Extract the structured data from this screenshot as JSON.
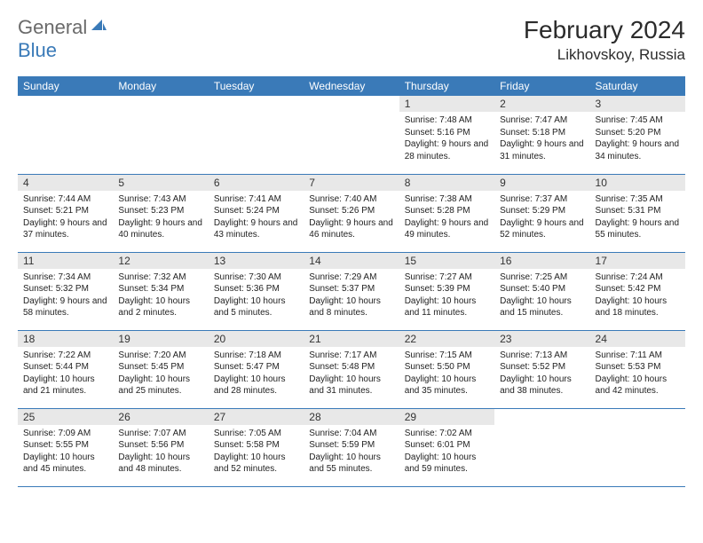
{
  "brand": {
    "general": "General",
    "blue": "Blue"
  },
  "title": "February 2024",
  "location": "Likhovskoy, Russia",
  "header_bg": "#3a7ab8",
  "daynames": [
    "Sunday",
    "Monday",
    "Tuesday",
    "Wednesday",
    "Thursday",
    "Friday",
    "Saturday"
  ],
  "weeks": [
    [
      null,
      null,
      null,
      null,
      {
        "n": "1",
        "sr": "7:48 AM",
        "ss": "5:16 PM",
        "dl": "9 hours and 28 minutes."
      },
      {
        "n": "2",
        "sr": "7:47 AM",
        "ss": "5:18 PM",
        "dl": "9 hours and 31 minutes."
      },
      {
        "n": "3",
        "sr": "7:45 AM",
        "ss": "5:20 PM",
        "dl": "9 hours and 34 minutes."
      }
    ],
    [
      {
        "n": "4",
        "sr": "7:44 AM",
        "ss": "5:21 PM",
        "dl": "9 hours and 37 minutes."
      },
      {
        "n": "5",
        "sr": "7:43 AM",
        "ss": "5:23 PM",
        "dl": "9 hours and 40 minutes."
      },
      {
        "n": "6",
        "sr": "7:41 AM",
        "ss": "5:24 PM",
        "dl": "9 hours and 43 minutes."
      },
      {
        "n": "7",
        "sr": "7:40 AM",
        "ss": "5:26 PM",
        "dl": "9 hours and 46 minutes."
      },
      {
        "n": "8",
        "sr": "7:38 AM",
        "ss": "5:28 PM",
        "dl": "9 hours and 49 minutes."
      },
      {
        "n": "9",
        "sr": "7:37 AM",
        "ss": "5:29 PM",
        "dl": "9 hours and 52 minutes."
      },
      {
        "n": "10",
        "sr": "7:35 AM",
        "ss": "5:31 PM",
        "dl": "9 hours and 55 minutes."
      }
    ],
    [
      {
        "n": "11",
        "sr": "7:34 AM",
        "ss": "5:32 PM",
        "dl": "9 hours and 58 minutes."
      },
      {
        "n": "12",
        "sr": "7:32 AM",
        "ss": "5:34 PM",
        "dl": "10 hours and 2 minutes."
      },
      {
        "n": "13",
        "sr": "7:30 AM",
        "ss": "5:36 PM",
        "dl": "10 hours and 5 minutes."
      },
      {
        "n": "14",
        "sr": "7:29 AM",
        "ss": "5:37 PM",
        "dl": "10 hours and 8 minutes."
      },
      {
        "n": "15",
        "sr": "7:27 AM",
        "ss": "5:39 PM",
        "dl": "10 hours and 11 minutes."
      },
      {
        "n": "16",
        "sr": "7:25 AM",
        "ss": "5:40 PM",
        "dl": "10 hours and 15 minutes."
      },
      {
        "n": "17",
        "sr": "7:24 AM",
        "ss": "5:42 PM",
        "dl": "10 hours and 18 minutes."
      }
    ],
    [
      {
        "n": "18",
        "sr": "7:22 AM",
        "ss": "5:44 PM",
        "dl": "10 hours and 21 minutes."
      },
      {
        "n": "19",
        "sr": "7:20 AM",
        "ss": "5:45 PM",
        "dl": "10 hours and 25 minutes."
      },
      {
        "n": "20",
        "sr": "7:18 AM",
        "ss": "5:47 PM",
        "dl": "10 hours and 28 minutes."
      },
      {
        "n": "21",
        "sr": "7:17 AM",
        "ss": "5:48 PM",
        "dl": "10 hours and 31 minutes."
      },
      {
        "n": "22",
        "sr": "7:15 AM",
        "ss": "5:50 PM",
        "dl": "10 hours and 35 minutes."
      },
      {
        "n": "23",
        "sr": "7:13 AM",
        "ss": "5:52 PM",
        "dl": "10 hours and 38 minutes."
      },
      {
        "n": "24",
        "sr": "7:11 AM",
        "ss": "5:53 PM",
        "dl": "10 hours and 42 minutes."
      }
    ],
    [
      {
        "n": "25",
        "sr": "7:09 AM",
        "ss": "5:55 PM",
        "dl": "10 hours and 45 minutes."
      },
      {
        "n": "26",
        "sr": "7:07 AM",
        "ss": "5:56 PM",
        "dl": "10 hours and 48 minutes."
      },
      {
        "n": "27",
        "sr": "7:05 AM",
        "ss": "5:58 PM",
        "dl": "10 hours and 52 minutes."
      },
      {
        "n": "28",
        "sr": "7:04 AM",
        "ss": "5:59 PM",
        "dl": "10 hours and 55 minutes."
      },
      {
        "n": "29",
        "sr": "7:02 AM",
        "ss": "6:01 PM",
        "dl": "10 hours and 59 minutes."
      },
      null,
      null
    ]
  ],
  "labels": {
    "sunrise": "Sunrise: ",
    "sunset": "Sunset: ",
    "daylight": "Daylight: "
  }
}
